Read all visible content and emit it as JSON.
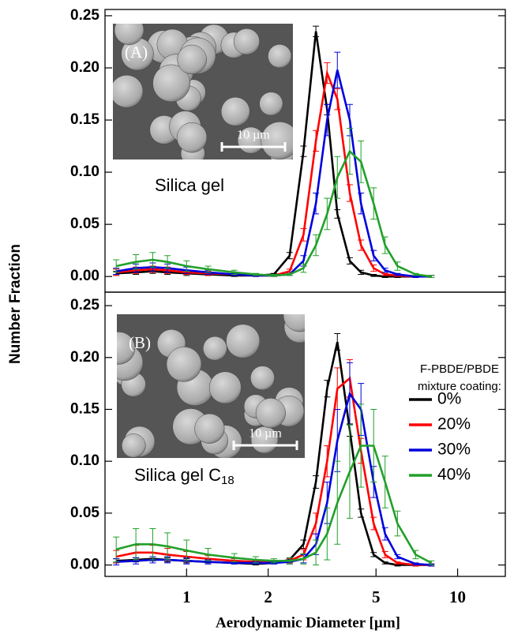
{
  "chart_data": [
    {
      "type": "line",
      "xscale": "log",
      "xlim": [
        0.5,
        15
      ],
      "ylim": [
        -0.015,
        0.256
      ],
      "yticks": [
        {
          "value": 0,
          "label": "0.00"
        },
        0.05,
        {
          "value": 0.1,
          "label": "0.10"
        },
        0.15,
        {
          "value": 0.2,
          "label": "0.20"
        },
        0.25
      ],
      "ylabel": "Number Fraction",
      "inset_label": "(A)",
      "scale_bar": "10 µm",
      "annotation": "Silica gel",
      "x": [
        0.55,
        0.65,
        0.75,
        0.85,
        1.0,
        1.2,
        1.5,
        1.8,
        2.1,
        2.4,
        2.7,
        3.0,
        3.3,
        3.6,
        4.0,
        4.4,
        4.9,
        5.4,
        6.0,
        7.0,
        8.0
      ],
      "series": [
        {
          "color": "#000000",
          "values": [
            0.003,
            0.004,
            0.005,
            0.004,
            0.003,
            0.002,
            0.001,
            0.001,
            0.002,
            0.02,
            0.12,
            0.235,
            0.16,
            0.06,
            0.015,
            0.004,
            0.001,
            0,
            0,
            0,
            0
          ],
          "errors": [
            0.002,
            0.002,
            0.002,
            0.002,
            0.002,
            0.001,
            0.001,
            0.001,
            0.001,
            0.003,
            0.005,
            0.005,
            0.005,
            0.004,
            0.003,
            0.002,
            0.001,
            0.001,
            0.001,
            0.001,
            0.001
          ]
        },
        {
          "color": "#ff0000",
          "values": [
            0.004,
            0.006,
            0.007,
            0.006,
            0.004,
            0.003,
            0.002,
            0.001,
            0.001,
            0.005,
            0.04,
            0.13,
            0.195,
            0.17,
            0.08,
            0.03,
            0.008,
            0.002,
            0.001,
            0,
            0
          ],
          "errors": [
            0.003,
            0.003,
            0.003,
            0.003,
            0.002,
            0.002,
            0.001,
            0.001,
            0.001,
            0.002,
            0.006,
            0.01,
            0.01,
            0.01,
            0.008,
            0.005,
            0.003,
            0.001,
            0.001,
            0.001,
            0.001
          ]
        },
        {
          "color": "#0000dd",
          "values": [
            0.005,
            0.008,
            0.009,
            0.008,
            0.006,
            0.004,
            0.002,
            0.001,
            0.001,
            0.002,
            0.015,
            0.07,
            0.15,
            0.198,
            0.15,
            0.07,
            0.02,
            0.006,
            0.002,
            0,
            0
          ],
          "errors": [
            0.003,
            0.004,
            0.004,
            0.004,
            0.003,
            0.002,
            0.001,
            0.001,
            0.001,
            0.001,
            0.005,
            0.01,
            0.015,
            0.017,
            0.015,
            0.01,
            0.005,
            0.002,
            0.001,
            0.001,
            0.001
          ]
        },
        {
          "color": "#22a02a",
          "values": [
            0.01,
            0.014,
            0.016,
            0.014,
            0.01,
            0.007,
            0.004,
            0.002,
            0.001,
            0.002,
            0.008,
            0.03,
            0.06,
            0.095,
            0.12,
            0.11,
            0.07,
            0.03,
            0.01,
            0.002,
            0
          ],
          "errors": [
            0.006,
            0.007,
            0.007,
            0.006,
            0.005,
            0.003,
            0.002,
            0.001,
            0.001,
            0.001,
            0.004,
            0.01,
            0.015,
            0.02,
            0.022,
            0.02,
            0.015,
            0.008,
            0.004,
            0.001,
            0.001
          ]
        }
      ]
    },
    {
      "type": "line",
      "xscale": "log",
      "xlim": [
        0.5,
        15
      ],
      "ylim": [
        -0.011,
        0.263
      ],
      "xticks": [
        1,
        2,
        5,
        10
      ],
      "yticks": [
        {
          "value": 0,
          "label": "0.00"
        },
        0.05,
        {
          "value": 0.1,
          "label": "0.10"
        },
        0.15,
        {
          "value": 0.2,
          "label": "0.20"
        },
        0.25
      ],
      "xlabel": "Aerodynamic Diameter [µm]",
      "inset_label": "(B)",
      "scale_bar": "10 µm",
      "annotation": "Silica gel C",
      "annotation_subscript": "18",
      "legend_title": [
        "F-PBDE/PBDE",
        "mixture coating:"
      ],
      "x": [
        0.55,
        0.65,
        0.75,
        0.85,
        1.0,
        1.2,
        1.5,
        1.8,
        2.1,
        2.4,
        2.7,
        3.0,
        3.3,
        3.6,
        4.0,
        4.4,
        4.9,
        5.4,
        6.0,
        7.0,
        8.0
      ],
      "series": [
        {
          "name": "0%",
          "color": "#000000",
          "values": [
            0.004,
            0.005,
            0.006,
            0.005,
            0.004,
            0.003,
            0.002,
            0.001,
            0.002,
            0.005,
            0.02,
            0.08,
            0.17,
            0.215,
            0.13,
            0.05,
            0.01,
            0.002,
            0,
            0,
            0
          ],
          "errors": [
            0.002,
            0.002,
            0.002,
            0.002,
            0.002,
            0.001,
            0.001,
            0.001,
            0.001,
            0.002,
            0.004,
            0.006,
            0.008,
            0.008,
            0.006,
            0.004,
            0.002,
            0.001,
            0.001,
            0.001,
            0.001
          ]
        },
        {
          "name": "20%",
          "color": "#ff0000",
          "values": [
            0.008,
            0.012,
            0.012,
            0.01,
            0.008,
            0.006,
            0.004,
            0.003,
            0.003,
            0.004,
            0.01,
            0.04,
            0.1,
            0.17,
            0.18,
            0.11,
            0.04,
            0.01,
            0.002,
            0,
            0
          ],
          "errors": [
            0.006,
            0.007,
            0.007,
            0.006,
            0.005,
            0.003,
            0.002,
            0.001,
            0.001,
            0.002,
            0.005,
            0.01,
            0.015,
            0.02,
            0.018,
            0.012,
            0.006,
            0.003,
            0.001,
            0.001,
            0.001
          ]
        },
        {
          "name": "30%",
          "color": "#0000dd",
          "values": [
            0.003,
            0.004,
            0.005,
            0.005,
            0.004,
            0.003,
            0.002,
            0.002,
            0.002,
            0.003,
            0.006,
            0.02,
            0.06,
            0.12,
            0.165,
            0.15,
            0.08,
            0.03,
            0.008,
            0.001,
            0
          ],
          "errors": [
            0.003,
            0.003,
            0.003,
            0.003,
            0.003,
            0.002,
            0.001,
            0.001,
            0.001,
            0.002,
            0.004,
            0.01,
            0.02,
            0.03,
            0.03,
            0.025,
            0.015,
            0.006,
            0.002,
            0.001,
            0.001
          ]
        },
        {
          "name": "40%",
          "color": "#22a02a",
          "values": [
            0.015,
            0.02,
            0.02,
            0.018,
            0.014,
            0.01,
            0.007,
            0.005,
            0.004,
            0.004,
            0.006,
            0.012,
            0.03,
            0.06,
            0.09,
            0.115,
            0.115,
            0.08,
            0.04,
            0.01,
            0.002
          ],
          "errors": [
            0.012,
            0.015,
            0.015,
            0.013,
            0.01,
            0.006,
            0.004,
            0.003,
            0.002,
            0.003,
            0.005,
            0.012,
            0.025,
            0.04,
            0.045,
            0.04,
            0.035,
            0.025,
            0.012,
            0.004,
            0.002
          ]
        }
      ]
    }
  ]
}
